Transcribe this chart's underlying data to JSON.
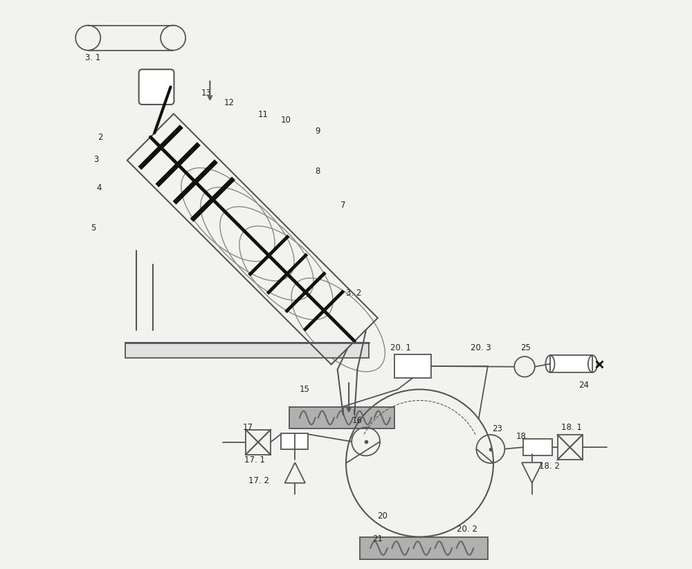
{
  "bg_color": "#f2f2ee",
  "line_color": "#555555",
  "dark_color": "#111111",
  "gray_fill": "#b0b0b0",
  "light_gray": "#cccccc"
}
